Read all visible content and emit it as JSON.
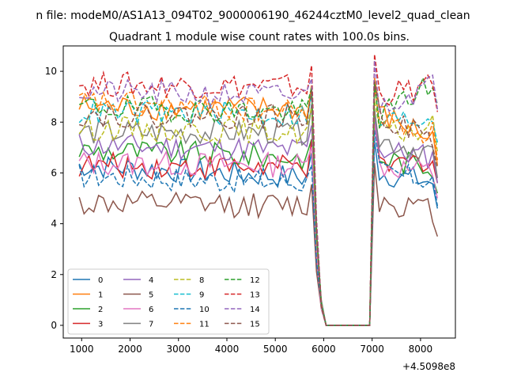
{
  "chart_data": {
    "type": "line",
    "suptitle": "n file: modeM0/AS1A13_094T02_9000006190_46244cztM0_level2_quad_clean",
    "title": "Quadrant 1 module wise count rates with 100.0s bins.",
    "xlabel": "",
    "ylabel": "",
    "x_offset_label": "+4.5098e8",
    "xlim": [
      620,
      8720
    ],
    "ylim": [
      -0.5,
      11.0
    ],
    "xticks": [
      1000,
      2000,
      3000,
      4000,
      5000,
      6000,
      7000,
      8000
    ],
    "yticks": [
      0,
      2,
      4,
      6,
      8,
      10
    ],
    "legend_position": "lower-left",
    "legend_columns": 4,
    "x": [
      950,
      1050,
      1150,
      1250,
      1350,
      1450,
      1550,
      1650,
      1750,
      1850,
      1950,
      2050,
      2150,
      2250,
      2350,
      2450,
      2550,
      2650,
      2750,
      2850,
      2950,
      3050,
      3150,
      3250,
      3350,
      3450,
      3550,
      3650,
      3750,
      3850,
      3950,
      4050,
      4150,
      4250,
      4350,
      4450,
      4550,
      4650,
      4750,
      4850,
      4950,
      5050,
      5150,
      5250,
      5350,
      5450,
      5550,
      5650,
      5750,
      5850,
      5950,
      6050,
      6150,
      6250,
      6350,
      6450,
      6550,
      6650,
      6750,
      6850,
      6950,
      7050,
      7150,
      7250,
      7350,
      7450,
      7550,
      7650,
      7750,
      7850,
      7950,
      8050,
      8150,
      8250,
      8350
    ],
    "series": [
      {
        "name": "0",
        "color": "#1f77b4",
        "style": "solid",
        "base": 6.3,
        "pre": 5.8,
        "post": 6.0,
        "end": 4.6
      },
      {
        "name": "1",
        "color": "#ff7f0e",
        "style": "solid",
        "base": 8.6,
        "pre": 8.5,
        "post": 8.3,
        "end": 6.3
      },
      {
        "name": "2",
        "color": "#2ca02c",
        "style": "solid",
        "base": 6.9,
        "pre": 6.6,
        "post": 6.6,
        "end": 5.2
      },
      {
        "name": "3",
        "color": "#d62728",
        "style": "solid",
        "base": 6.3,
        "pre": 6.2,
        "post": 6.2,
        "end": 5.6
      },
      {
        "name": "4",
        "color": "#9467bd",
        "style": "solid",
        "base": 7.1,
        "pre": 6.9,
        "post": 6.9,
        "end": 5.6
      },
      {
        "name": "5",
        "color": "#8c564b",
        "style": "solid",
        "base": 4.8,
        "pre": 4.7,
        "post": 4.9,
        "end": 3.5
      },
      {
        "name": "6",
        "color": "#e377c2",
        "style": "solid",
        "base": 6.4,
        "pre": 6.3,
        "post": 6.3,
        "end": 5.0
      },
      {
        "name": "7",
        "color": "#7f7f7f",
        "style": "solid",
        "base": 7.6,
        "pre": 7.6,
        "post": 7.3,
        "end": 5.8
      },
      {
        "name": "8",
        "color": "#bcbd22",
        "style": "dashed",
        "base": 7.8,
        "pre": 7.6,
        "post": 7.5,
        "end": 6.8
      },
      {
        "name": "9",
        "color": "#17becf",
        "style": "dashed",
        "base": 8.4,
        "pre": 8.3,
        "post": 8.0,
        "end": 7.2
      },
      {
        "name": "10",
        "color": "#1f77b4",
        "style": "dashed",
        "base": 5.9,
        "pre": 5.6,
        "post": 6.0,
        "end": 4.7
      },
      {
        "name": "11",
        "color": "#ff7f0e",
        "style": "dashed",
        "base": 8.8,
        "pre": 8.4,
        "post": 8.1,
        "end": 6.5
      },
      {
        "name": "12",
        "color": "#2ca02c",
        "style": "dashed",
        "base": 8.6,
        "pre": 8.4,
        "post": 8.2,
        "end": 8.7
      },
      {
        "name": "13",
        "color": "#d62728",
        "style": "dashed",
        "base": 9.5,
        "pre": 9.4,
        "post": 9.1,
        "end": 8.4
      },
      {
        "name": "14",
        "color": "#9467bd",
        "style": "dashed",
        "base": 9.2,
        "pre": 9.0,
        "post": 8.7,
        "end": 8.5
      },
      {
        "name": "15",
        "color": "#8c564b",
        "style": "dashed",
        "base": 8.3,
        "pre": 8.2,
        "post": 8.3,
        "end": 6.2
      }
    ]
  }
}
